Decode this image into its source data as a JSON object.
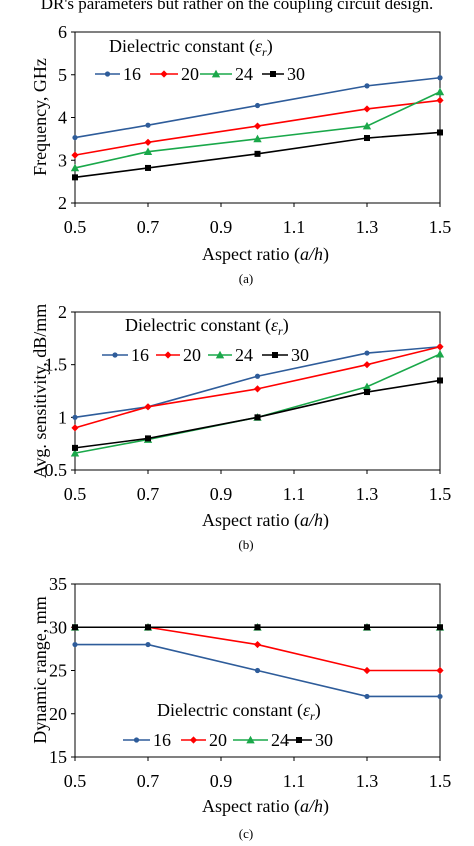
{
  "header_text": "DR's parameters but rather on the coupling circuit design.",
  "chart_data": [
    {
      "type": "line",
      "panel_label": "(a)",
      "xlabel_plain": "Aspect ratio (",
      "xlabel_italic": "a/h",
      "xlabel_close": ")",
      "ylabel": "Frequency, GHz",
      "xlim": [
        0.5,
        1.5
      ],
      "ylim": [
        2,
        6
      ],
      "xticks": [
        0.5,
        0.7,
        0.9,
        1.1,
        1.3,
        1.5
      ],
      "yticks": [
        2,
        3,
        4,
        5,
        6
      ],
      "xtick_labels": [
        "0.5",
        "0.7",
        "0.9",
        "1.1",
        "1.3",
        "1.5"
      ],
      "ytick_labels": [
        "2",
        "3",
        "4",
        "5",
        "6"
      ],
      "legend_title": "Dielectric constant (",
      "legend_symbol": "ε",
      "legend_sub": "r",
      "legend_close": ")",
      "legend_position": "top-left",
      "x": [
        0.5,
        0.7,
        1.0,
        1.3,
        1.5
      ],
      "series": [
        {
          "name": "16",
          "color": "#2e5c9a",
          "marker": "dot",
          "values": [
            3.53,
            3.82,
            4.28,
            4.74,
            4.93
          ]
        },
        {
          "name": "20",
          "color": "#ff0000",
          "marker": "diamond",
          "values": [
            3.12,
            3.42,
            3.8,
            4.2,
            4.4
          ]
        },
        {
          "name": "24",
          "color": "#1aa84a",
          "marker": "triangle",
          "values": [
            2.82,
            3.2,
            3.5,
            3.8,
            4.6
          ]
        },
        {
          "name": "30",
          "color": "#000000",
          "marker": "square",
          "values": [
            2.6,
            2.82,
            3.15,
            3.52,
            3.65
          ]
        }
      ]
    },
    {
      "type": "line",
      "panel_label": "(b)",
      "xlabel_plain": "Aspect ratio (",
      "xlabel_italic": "a/h",
      "xlabel_close": ")",
      "ylabel": "Avg. sensitivity, dB/mm",
      "xlim": [
        0.5,
        1.5
      ],
      "ylim": [
        0.5,
        2
      ],
      "xticks": [
        0.5,
        0.7,
        0.9,
        1.1,
        1.3,
        1.5
      ],
      "yticks": [
        0.5,
        1,
        1.5,
        2
      ],
      "xtick_labels": [
        "0.5",
        "0.7",
        "0.9",
        "1.1",
        "1.3",
        "1.5"
      ],
      "ytick_labels": [
        "0.5",
        "1",
        "1.5",
        "2"
      ],
      "legend_title": "Dielectric constant (",
      "legend_symbol": "ε",
      "legend_sub": "r",
      "legend_close": ")",
      "legend_position": "top-left",
      "x": [
        0.5,
        0.7,
        1.0,
        1.3,
        1.5
      ],
      "series": [
        {
          "name": "16",
          "color": "#2e5c9a",
          "marker": "dot",
          "values": [
            1.0,
            1.1,
            1.39,
            1.61,
            1.67
          ]
        },
        {
          "name": "20",
          "color": "#ff0000",
          "marker": "diamond",
          "values": [
            0.9,
            1.1,
            1.27,
            1.5,
            1.67
          ]
        },
        {
          "name": "24",
          "color": "#1aa84a",
          "marker": "triangle",
          "values": [
            0.66,
            0.79,
            1.0,
            1.29,
            1.6
          ]
        },
        {
          "name": "30",
          "color": "#000000",
          "marker": "square",
          "values": [
            0.71,
            0.8,
            1.0,
            1.24,
            1.35
          ]
        }
      ]
    },
    {
      "type": "line",
      "panel_label": "(c)",
      "xlabel_plain": "Aspect ratio (",
      "xlabel_italic": "a/h",
      "xlabel_close": ")",
      "ylabel": "Dynamic range, mm",
      "xlim": [
        0.5,
        1.5
      ],
      "ylim": [
        15,
        35
      ],
      "xticks": [
        0.5,
        0.7,
        0.9,
        1.1,
        1.3,
        1.5
      ],
      "yticks": [
        15,
        20,
        25,
        30,
        35
      ],
      "xtick_labels": [
        "0.5",
        "0.7",
        "0.9",
        "1.1",
        "1.3",
        "1.5"
      ],
      "ytick_labels": [
        "15",
        "20",
        "25",
        "30",
        "35"
      ],
      "legend_title": "Dielectric constant (",
      "legend_symbol": "ε",
      "legend_sub": "r",
      "legend_close": ")",
      "legend_position": "bottom-left",
      "x": [
        0.5,
        0.7,
        1.0,
        1.3,
        1.5
      ],
      "series": [
        {
          "name": "16",
          "color": "#2e5c9a",
          "marker": "dot",
          "values": [
            28,
            28,
            25,
            22,
            22
          ]
        },
        {
          "name": "20",
          "color": "#ff0000",
          "marker": "diamond",
          "values": [
            30,
            30,
            28,
            25,
            25
          ]
        },
        {
          "name": "24",
          "color": "#1aa84a",
          "marker": "triangle",
          "values": [
            30,
            30,
            30,
            30,
            30
          ]
        },
        {
          "name": "30",
          "color": "#000000",
          "marker": "square",
          "values": [
            30,
            30,
            30,
            30,
            30
          ]
        }
      ]
    }
  ]
}
